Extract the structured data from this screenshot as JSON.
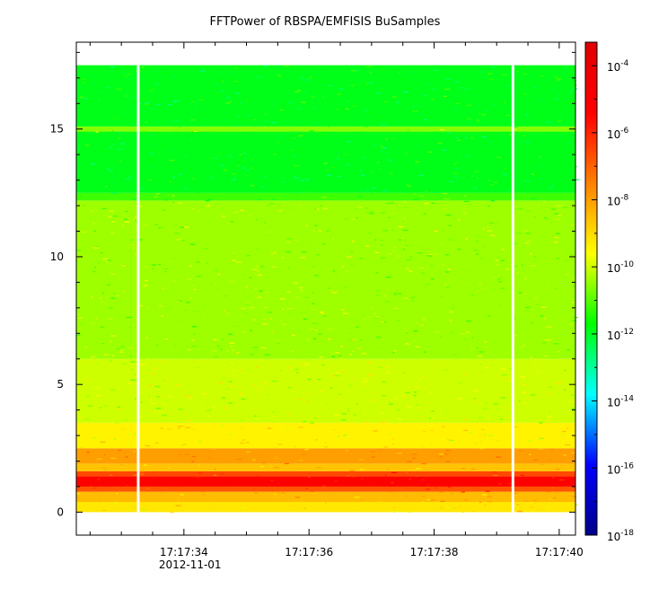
{
  "chart_data": {
    "type": "heatmap",
    "title": "FFTPower of RBSPA/EMFISIS  BuSamples",
    "xlabel": "",
    "ylabel": "",
    "x_tick_labels": [
      "17:17:34",
      "17:17:36",
      "17:17:38",
      "17:17:40"
    ],
    "x_tick_seconds": [
      34,
      36,
      38,
      40
    ],
    "x_date_label": "2012-11-01",
    "x_range_seconds": [
      32.28,
      40.26
    ],
    "y_ticks": [
      0,
      5,
      10,
      15
    ],
    "y_tick_labels": [
      "0",
      "5",
      "10",
      "15"
    ],
    "ylim": [
      -0.9,
      18.4
    ],
    "data_y_range": [
      0,
      17.5
    ],
    "colorbar": {
      "scale": "log",
      "range_exponent": [
        -18,
        -3.3
      ],
      "tick_base": "10",
      "tick_exponents": [
        "-4",
        "-6",
        "-8",
        "-10",
        "-12",
        "-14",
        "-16",
        "-18"
      ],
      "colors": [
        "#00008c",
        "#0000ff",
        "#00ffff",
        "#00ff00",
        "#ffff00",
        "#ff8000",
        "#ff0000",
        "#e00000"
      ]
    },
    "gaps_seconds": [
      33.27,
      39.26
    ],
    "bands": [
      {
        "y_from": 0.0,
        "y_to": 0.4,
        "log_power": -9.2
      },
      {
        "y_from": 0.4,
        "y_to": 0.8,
        "log_power": -8.5
      },
      {
        "y_from": 0.8,
        "y_to": 1.0,
        "log_power": -6.8
      },
      {
        "y_from": 1.0,
        "y_to": 1.4,
        "log_power": -5.4
      },
      {
        "y_from": 1.4,
        "y_to": 1.6,
        "log_power": -6.6
      },
      {
        "y_from": 1.6,
        "y_to": 1.9,
        "log_power": -8.6
      },
      {
        "y_from": 1.9,
        "y_to": 2.5,
        "log_power": -8.0
      },
      {
        "y_from": 2.5,
        "y_to": 3.5,
        "log_power": -9.4
      },
      {
        "y_from": 3.5,
        "y_to": 6.0,
        "log_power": -10.0
      },
      {
        "y_from": 6.0,
        "y_to": 12.2,
        "log_power": -10.4
      },
      {
        "y_from": 12.2,
        "y_to": 12.5,
        "log_power": -11.2
      },
      {
        "y_from": 12.5,
        "y_to": 14.9,
        "log_power": -11.9
      },
      {
        "y_from": 14.9,
        "y_to": 15.1,
        "log_power": -10.6
      },
      {
        "y_from": 15.1,
        "y_to": 17.5,
        "log_power": -11.9
      }
    ]
  }
}
